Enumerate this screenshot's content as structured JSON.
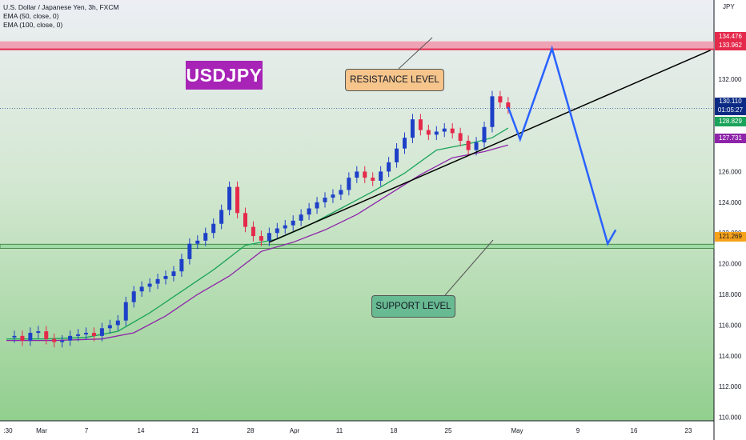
{
  "legend": {
    "symbol": "U.S. Dollar / Japanese Yen, 3h, FXCM",
    "ema50": "EMA (50, close, 0)",
    "ema100": "EMA (100, close, 0)"
  },
  "logo_text": "USDJPY",
  "callouts": {
    "resistance": "RESISTANCE LEVEL",
    "support": "SUPPORT LEVEL"
  },
  "currency_label": "JPY",
  "price_badges": {
    "resistance_top": "134.476",
    "resistance_bottom": "133.962",
    "current_price": "130.110",
    "countdown": "01:05:27",
    "ema50_value": "128.829",
    "ema100_value": "127.731",
    "support": "121.269"
  },
  "colors": {
    "resistance": "#e5294a",
    "support": "#4caf50",
    "ema50": "#1aa35a",
    "ema100": "#8e24aa",
    "up_candle": "#1e40c8",
    "down_candle": "#e5294a",
    "projection": "#2962ff",
    "current_badge": "#0b2a84",
    "logo": "#a724b6"
  },
  "chart_data": {
    "type": "line",
    "title": "U.S. Dollar / Japanese Yen, 3h, FXCM",
    "x_tick_labels": [
      ":30",
      "Mar",
      "7",
      "14",
      "21",
      "28",
      "Apr",
      "11",
      "18",
      "25",
      "May",
      "9",
      "16",
      "23"
    ],
    "y_ticks": [
      110,
      112,
      114,
      116,
      118,
      120,
      122,
      124,
      126,
      128,
      130,
      132
    ],
    "ylim": [
      108.7,
      136.3
    ],
    "resistance_zone": [
      133.962,
      134.476
    ],
    "support_zone": [
      121.0,
      121.269
    ],
    "current_price": 130.11,
    "price_path": [
      [
        0.0,
        115.2
      ],
      [
        1.0,
        115.3
      ],
      [
        2.0,
        115.0
      ],
      [
        3.0,
        115.5
      ],
      [
        4.0,
        115.6
      ],
      [
        5.0,
        115.1
      ],
      [
        6.0,
        114.9
      ],
      [
        7.0,
        115.0
      ],
      [
        8.0,
        115.3
      ],
      [
        9.0,
        115.4
      ],
      [
        10.0,
        115.5
      ],
      [
        11.0,
        115.3
      ],
      [
        12.0,
        115.8
      ],
      [
        13.0,
        116.0
      ],
      [
        14.0,
        116.3
      ],
      [
        15.0,
        117.5
      ],
      [
        16.0,
        118.2
      ],
      [
        17.0,
        118.5
      ],
      [
        18.0,
        118.7
      ],
      [
        19.0,
        119.0
      ],
      [
        20.0,
        119.2
      ],
      [
        21.0,
        119.5
      ],
      [
        22.0,
        120.3
      ],
      [
        23.0,
        121.3
      ],
      [
        24.0,
        121.5
      ],
      [
        25.0,
        122.0
      ],
      [
        26.0,
        122.6
      ],
      [
        27.0,
        123.5
      ],
      [
        28.0,
        125.0
      ],
      [
        29.0,
        123.3
      ],
      [
        30.0,
        122.4
      ],
      [
        31.0,
        121.8
      ],
      [
        32.0,
        121.5
      ],
      [
        33.0,
        122.0
      ],
      [
        34.0,
        122.3
      ],
      [
        35.0,
        122.5
      ],
      [
        36.0,
        122.8
      ],
      [
        37.0,
        123.2
      ],
      [
        38.0,
        123.6
      ],
      [
        39.0,
        124.0
      ],
      [
        40.0,
        124.3
      ],
      [
        41.0,
        124.5
      ],
      [
        42.0,
        124.8
      ],
      [
        43.0,
        125.6
      ],
      [
        44.0,
        126.0
      ],
      [
        45.0,
        125.6
      ],
      [
        46.0,
        125.4
      ],
      [
        47.0,
        126.0
      ],
      [
        48.0,
        126.6
      ],
      [
        49.0,
        127.5
      ],
      [
        50.0,
        128.2
      ],
      [
        51.0,
        129.4
      ],
      [
        52.0,
        128.7
      ],
      [
        53.0,
        128.4
      ],
      [
        54.0,
        128.6
      ],
      [
        55.0,
        128.8
      ],
      [
        56.0,
        128.5
      ],
      [
        57.0,
        128.0
      ],
      [
        58.0,
        127.4
      ],
      [
        59.0,
        127.9
      ],
      [
        60.0,
        128.9
      ],
      [
        61.0,
        130.9
      ],
      [
        62.0,
        130.5
      ],
      [
        63.0,
        130.11
      ]
    ],
    "ema50_path": [
      [
        0.0,
        115.1
      ],
      [
        5.0,
        115.1
      ],
      [
        10.0,
        115.2
      ],
      [
        14.0,
        115.6
      ],
      [
        18.0,
        116.8
      ],
      [
        22.0,
        118.2
      ],
      [
        26.0,
        119.6
      ],
      [
        30.0,
        121.2
      ],
      [
        34.0,
        121.6
      ],
      [
        38.0,
        122.5
      ],
      [
        42.0,
        123.6
      ],
      [
        46.0,
        124.7
      ],
      [
        50.0,
        125.9
      ],
      [
        54.0,
        127.4
      ],
      [
        58.0,
        127.8
      ],
      [
        61.0,
        128.2
      ],
      [
        63.0,
        128.83
      ]
    ],
    "ema100_path": [
      [
        0.0,
        115.0
      ],
      [
        6.0,
        115.0
      ],
      [
        12.0,
        115.1
      ],
      [
        16.0,
        115.5
      ],
      [
        20.0,
        116.6
      ],
      [
        24.0,
        118.0
      ],
      [
        28.0,
        119.2
      ],
      [
        32.0,
        120.8
      ],
      [
        36.0,
        121.4
      ],
      [
        40.0,
        122.2
      ],
      [
        44.0,
        123.2
      ],
      [
        48.0,
        124.5
      ],
      [
        52.0,
        125.8
      ],
      [
        56.0,
        126.9
      ],
      [
        60.0,
        127.3
      ],
      [
        63.0,
        127.73
      ]
    ],
    "trendline": [
      [
        33.0,
        121.4
      ],
      [
        88.4,
        133.9
      ]
    ],
    "projection_path": [
      [
        63.0,
        130.2
      ],
      [
        64.5,
        128.1
      ],
      [
        68.5,
        134.0
      ],
      [
        75.5,
        121.3
      ],
      [
        76.5,
        122.2
      ]
    ]
  }
}
